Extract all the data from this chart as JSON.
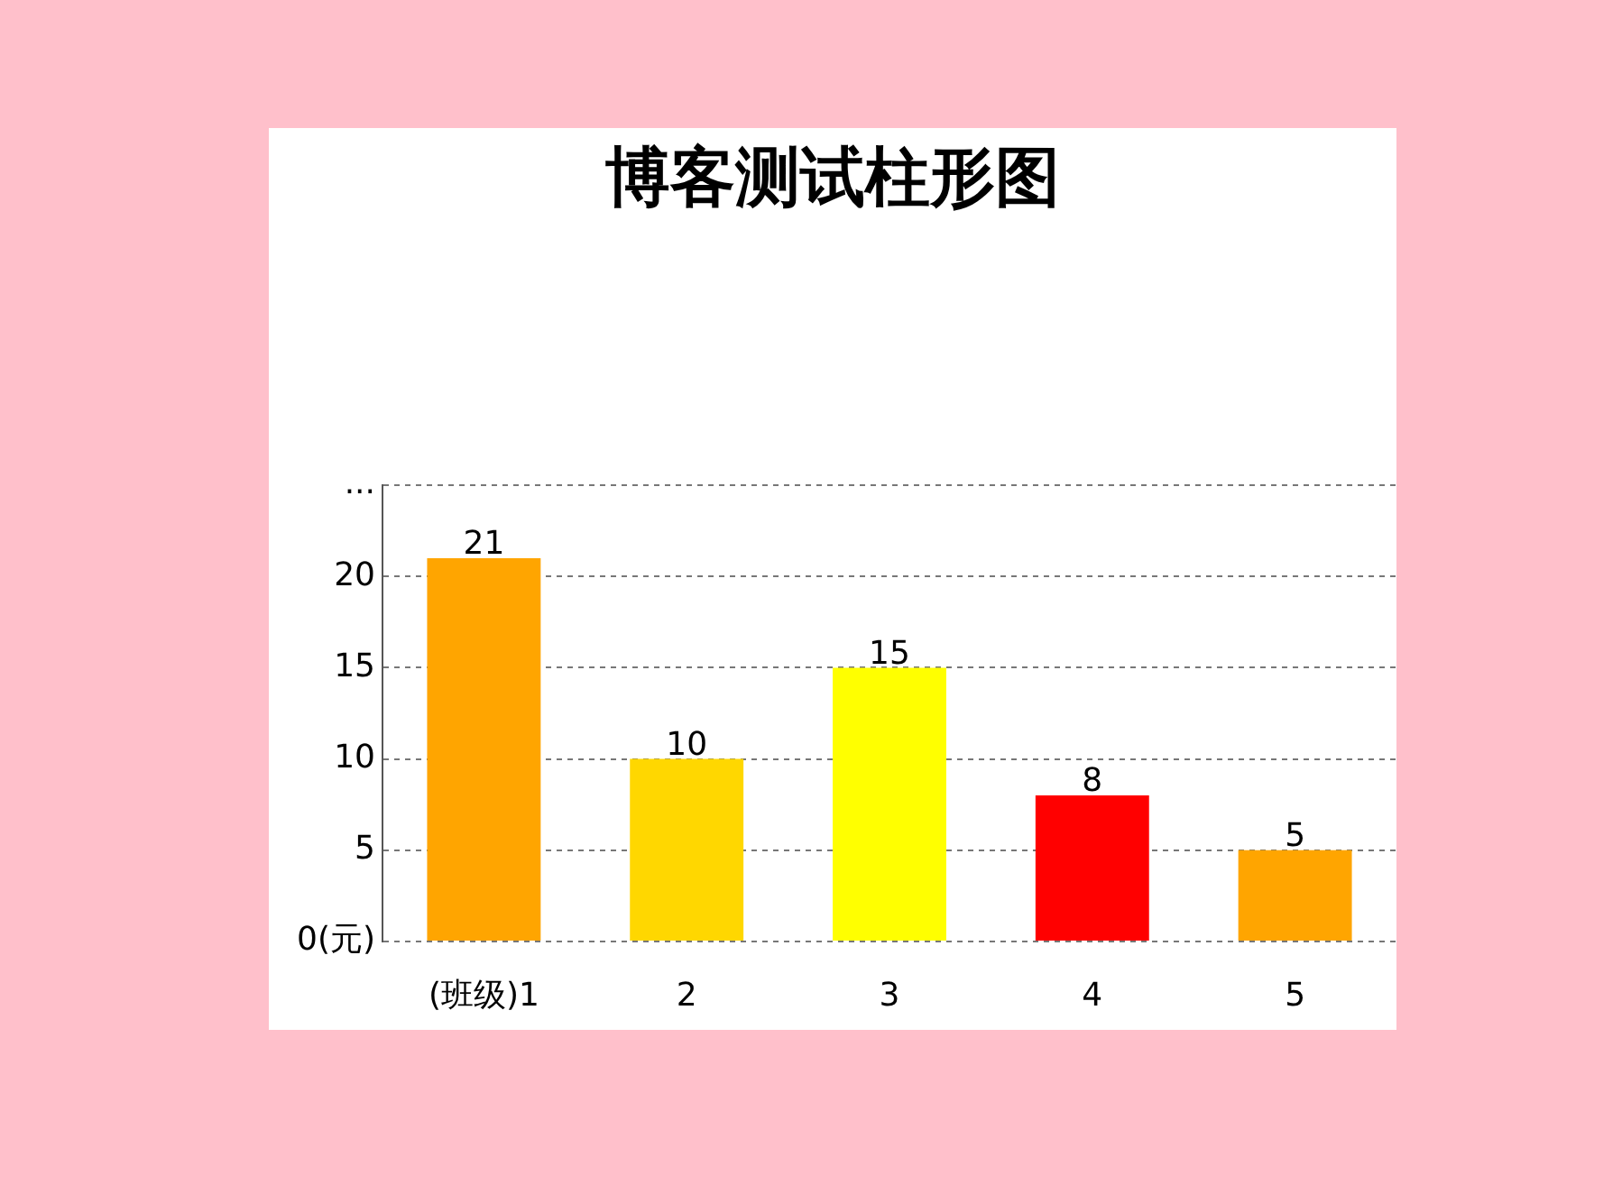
{
  "chart_data": {
    "type": "bar",
    "title": "博客测试柱形图",
    "categories": [
      "(班级)1",
      "2",
      "3",
      "4",
      "5"
    ],
    "values": [
      21,
      10,
      15,
      8,
      5
    ],
    "colors": [
      "#ffa500",
      "#ffd700",
      "#ffff00",
      "#ff0000",
      "#ffa500"
    ],
    "ylim": [
      0,
      25
    ],
    "yticks": [
      {
        "value": 0,
        "label": "0(元)"
      },
      5,
      10,
      15,
      20,
      {
        "value": 25,
        "label": "..."
      }
    ],
    "grid": "y",
    "data_labels": true
  }
}
